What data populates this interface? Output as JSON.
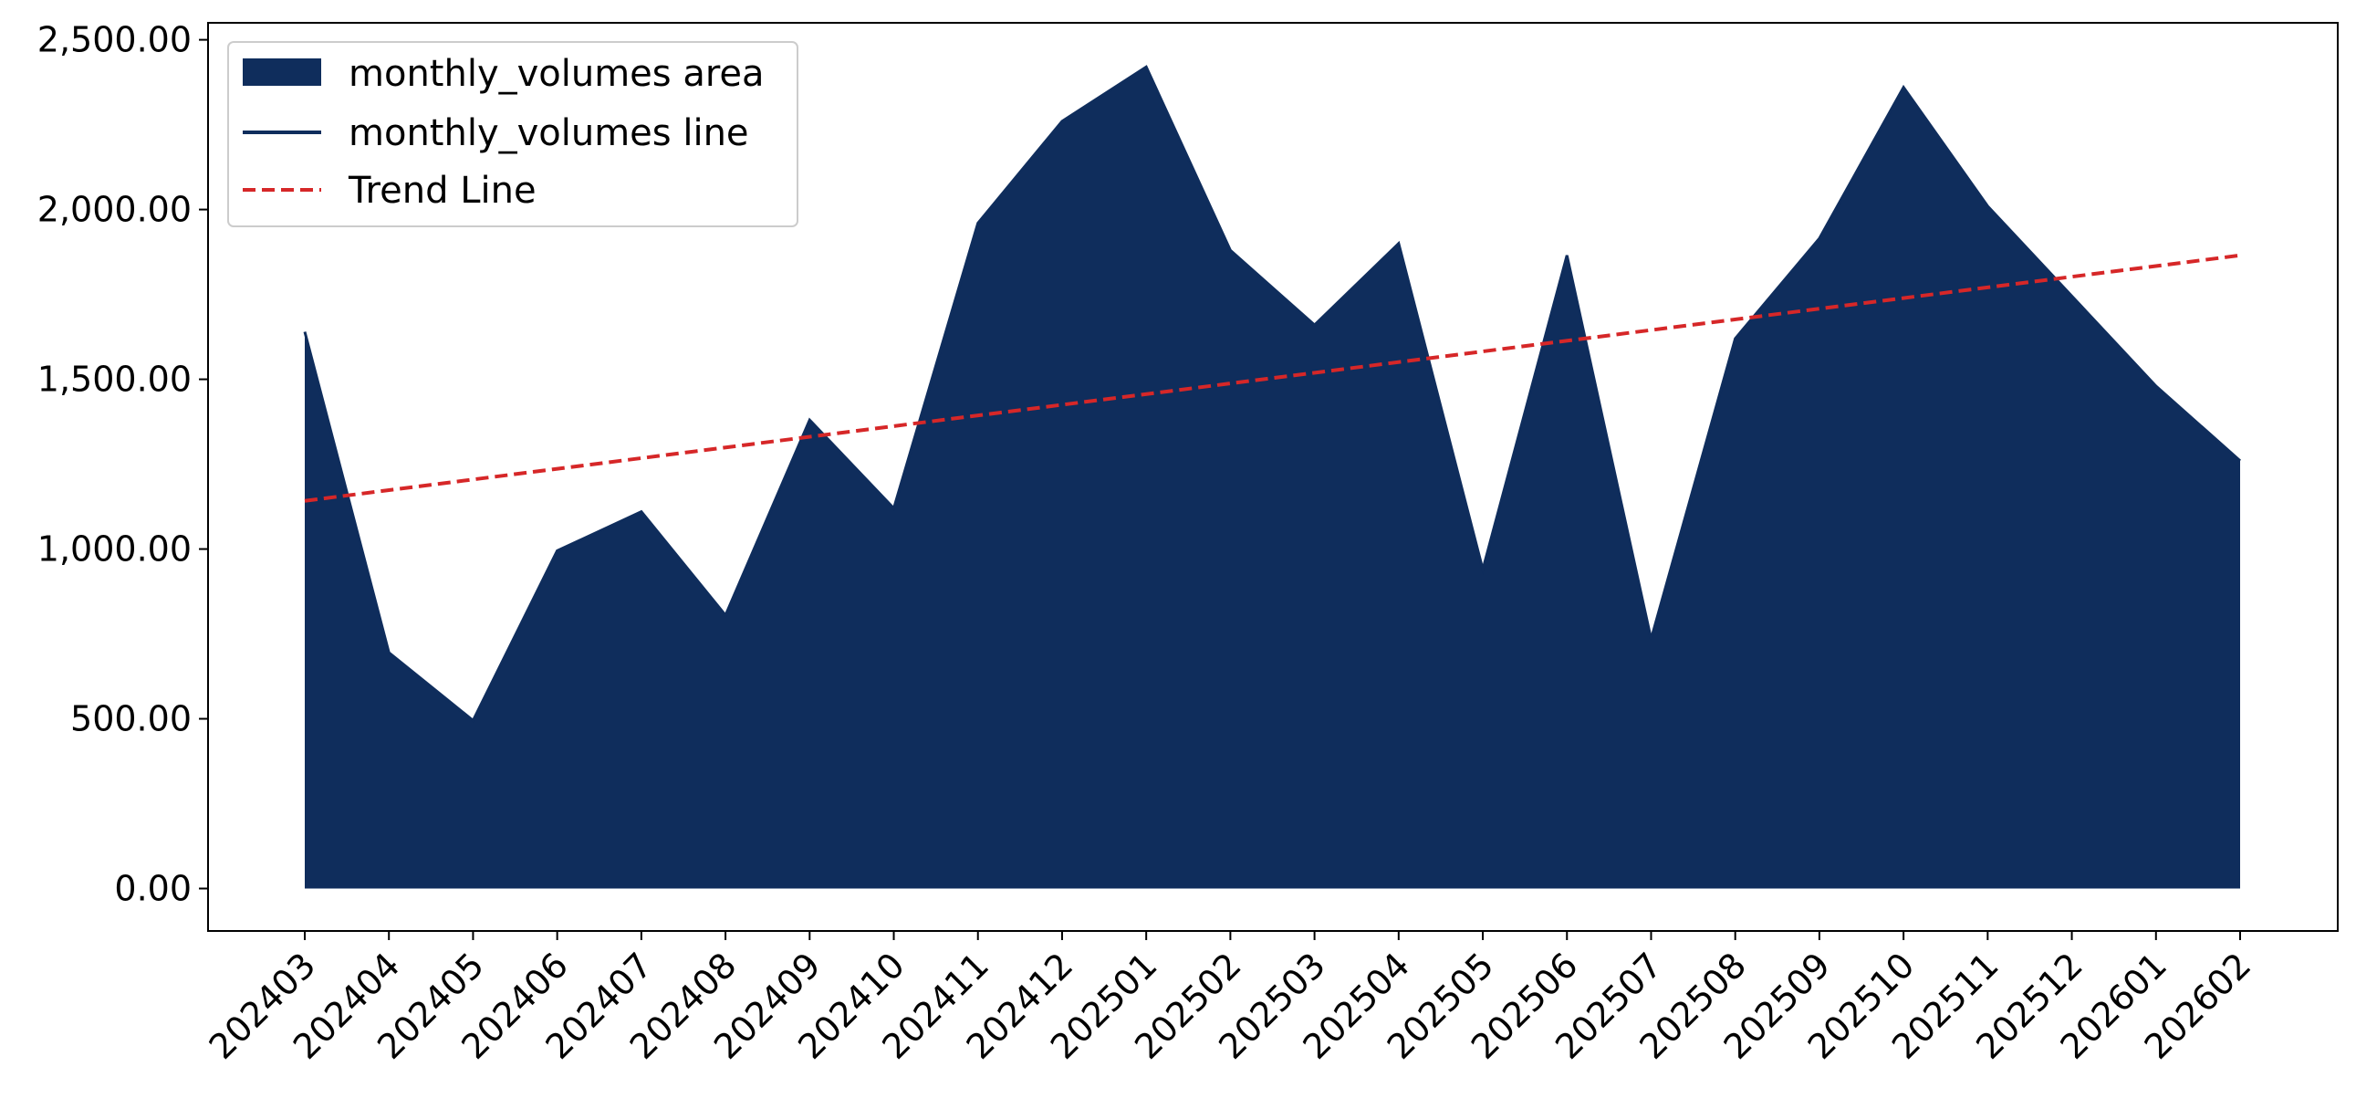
{
  "chart_data": {
    "type": "area",
    "title": "",
    "xlabel": "",
    "ylabel": "",
    "categories": [
      "202403",
      "202404",
      "202405",
      "202406",
      "202407",
      "202408",
      "202409",
      "202410",
      "202411",
      "202412",
      "202501",
      "202502",
      "202503",
      "202504",
      "202505",
      "202506",
      "202507",
      "202508",
      "202509",
      "202510",
      "202511",
      "202512",
      "202601",
      "202602"
    ],
    "series": [
      {
        "name": "monthly_volumes area",
        "kind": "area",
        "color": "#0f2d5c",
        "values": [
          1640,
          695,
          495,
          995,
          1110,
          805,
          1380,
          1120,
          1960,
          2260,
          2420,
          1880,
          1660,
          1900,
          940,
          1865,
          735,
          1620,
          1915,
          2360,
          2010,
          1745,
          1480,
          1260
        ]
      },
      {
        "name": "monthly_volumes line",
        "kind": "line",
        "color": "#0f2d5c",
        "values": [
          1640,
          695,
          495,
          995,
          1110,
          805,
          1380,
          1120,
          1960,
          2260,
          2420,
          1880,
          1660,
          1900,
          940,
          1865,
          735,
          1620,
          1915,
          2360,
          2010,
          1745,
          1480,
          1260
        ]
      },
      {
        "name": "Trend Line",
        "kind": "trend",
        "color": "#d62728",
        "start": 1142,
        "end": 1865
      }
    ],
    "ylim": [
      -125,
      2550
    ],
    "yticks": [
      0,
      500,
      1000,
      1500,
      2000,
      2500
    ],
    "ytick_labels": [
      "0.00",
      "500.00",
      "1,000.00",
      "1,500.00",
      "2,000.00",
      "2,500.00"
    ],
    "grid": false,
    "legend": "top-left"
  }
}
